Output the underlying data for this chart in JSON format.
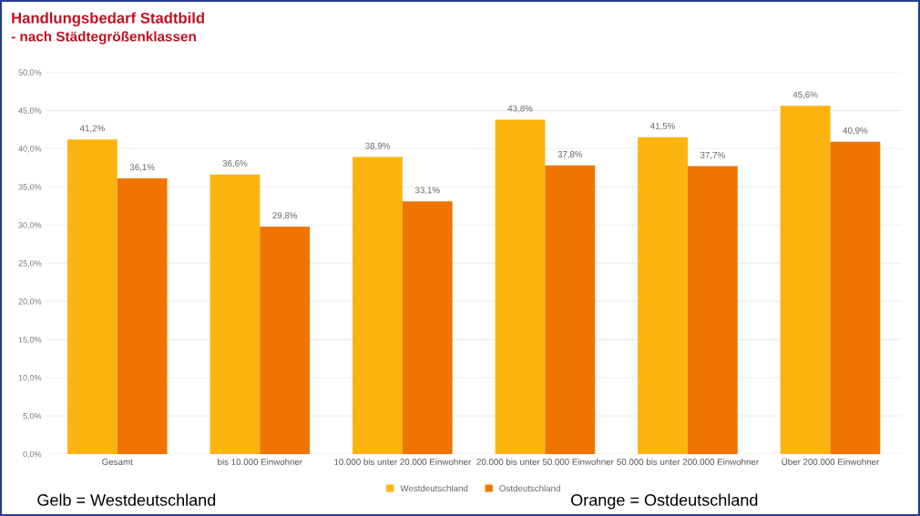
{
  "chart_data": {
    "type": "bar",
    "title": "Handlungsbedarf Stadtbild",
    "subtitle": "- nach Städtegrößenklassen",
    "categories": [
      "Gesamt",
      "bis 10.000 Einwohner",
      "10.000 bis unter 20.000 Einwohner",
      "20.000 bis unter 50.000 Einwohner",
      "50.000 bis unter 200.000 Einwohner",
      "Über 200.000 Einwohner"
    ],
    "series": [
      {
        "name": "Westdeutschland",
        "color": "#fbb30f",
        "values": [
          41.2,
          36.6,
          38.9,
          43.8,
          41.5,
          45.6
        ],
        "value_labels": [
          "41,2%",
          "36,6%",
          "38,9%",
          "43,8%",
          "41,5%",
          "45,6%"
        ]
      },
      {
        "name": "Ostdeutschland",
        "color": "#ef7500",
        "values": [
          36.1,
          29.8,
          33.1,
          37.8,
          37.7,
          40.9
        ],
        "value_labels": [
          "36,1%",
          "29,8%",
          "33,1%",
          "37,8%",
          "37,7%",
          "40,9%"
        ]
      }
    ],
    "ylim": [
      0,
      50
    ],
    "yticks": [
      {
        "value": 0,
        "label": "0,0%"
      },
      {
        "value": 5,
        "label": "5,0%"
      },
      {
        "value": 10,
        "label": "10,0%"
      },
      {
        "value": 15,
        "label": "15,0%"
      },
      {
        "value": 20,
        "label": "20,0%"
      },
      {
        "value": 25,
        "label": "25,0%"
      },
      {
        "value": 30,
        "label": "30,0%"
      },
      {
        "value": 35,
        "label": "35,0%"
      },
      {
        "value": 40,
        "label": "40,0%"
      },
      {
        "value": 45,
        "label": "45,0%"
      },
      {
        "value": 50,
        "label": "50,0%"
      }
    ],
    "grid": "y",
    "legend": "bottom",
    "annotations": [
      "Gelb = Westdeutschland",
      "Orange = Ostdeutschland"
    ]
  }
}
